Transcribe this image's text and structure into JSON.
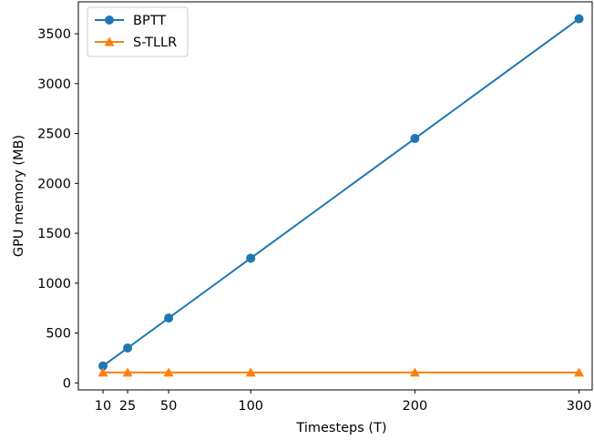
{
  "chart_data": {
    "type": "line",
    "title": "",
    "xlabel": "Timesteps (T)",
    "ylabel": "GPU memory (MB)",
    "x": [
      10,
      25,
      50,
      100,
      200,
      300
    ],
    "xticks": [
      "10",
      "25",
      "50",
      "100",
      "200",
      "300"
    ],
    "yticks": [
      "0",
      "500",
      "1000",
      "1500",
      "2000",
      "2500",
      "3000",
      "3500"
    ],
    "xlim": [
      -5,
      308
    ],
    "ylim": [
      -70,
      3820
    ],
    "grid": false,
    "legend_position": "top-left",
    "series": [
      {
        "name": "BPTT",
        "marker": "circle",
        "color": "#1f77b4",
        "values": [
          170,
          350,
          650,
          1250,
          2450,
          3650
        ]
      },
      {
        "name": "S-TLLR",
        "marker": "triangle",
        "color": "#ff7f0e",
        "values": [
          105,
          105,
          105,
          105,
          105,
          105
        ]
      }
    ]
  }
}
